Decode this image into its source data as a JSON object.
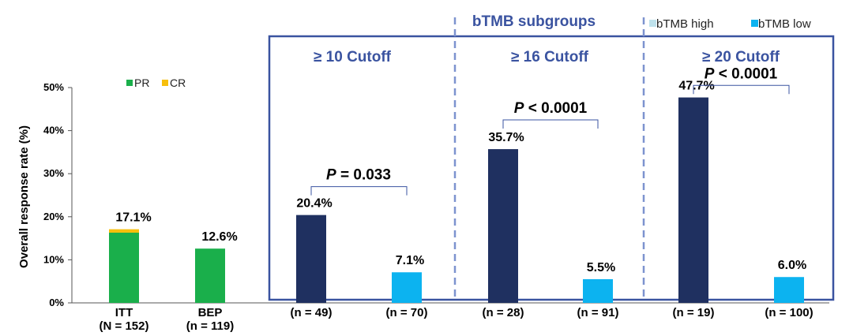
{
  "chart_data": {
    "type": "bar",
    "title": "",
    "ylabel": "Overall response rate (%)",
    "ylim": [
      0,
      50
    ],
    "yticks": [
      "0%",
      "10%",
      "20%",
      "30%",
      "40%",
      "50%"
    ],
    "stack_legend": [
      {
        "name": "PR",
        "color": "#1aaf4b"
      },
      {
        "name": "CR",
        "color": "#f7bf0d"
      }
    ],
    "group_legend": [
      {
        "name": "bTMB high",
        "color": "#bfe2ec"
      },
      {
        "name": "bTMB low",
        "color": "#0cb3f0"
      }
    ],
    "subgroups_title": "bTMB subgroups",
    "colors": {
      "high": "#1f3060",
      "low": "#0cb3f0",
      "pr": "#1aaf4b",
      "cr": "#f7bf0d",
      "accent": "#3a53a0"
    },
    "bars": [
      {
        "key": "itt",
        "cat1": "ITT",
        "cat2": "(N = 152)",
        "kind": "stack",
        "pr": 16.3,
        "cr": 0.8,
        "label": "17.1%"
      },
      {
        "key": "bep",
        "cat1": "BEP",
        "cat2": "(n = 119)",
        "kind": "stack",
        "pr": 12.6,
        "cr": 0,
        "label": "12.6%"
      },
      {
        "key": "c10-high",
        "cat2": "(n = 49)",
        "kind": "high",
        "value": 20.4,
        "label": "20.4%"
      },
      {
        "key": "c10-low",
        "cat2": "(n = 70)",
        "kind": "low",
        "value": 7.1,
        "label": "7.1%"
      },
      {
        "key": "c16-high",
        "cat2": "(n = 28)",
        "kind": "high",
        "value": 35.7,
        "label": "35.7%"
      },
      {
        "key": "c16-low",
        "cat2": "(n = 91)",
        "kind": "low",
        "value": 5.5,
        "label": "5.5%"
      },
      {
        "key": "c20-high",
        "cat2": "(n = 19)",
        "kind": "high",
        "value": 47.7,
        "label": "47.7%"
      },
      {
        "key": "c20-low",
        "cat2": "(n = 100)",
        "kind": "low",
        "value": 6.0,
        "label": "6.0%"
      }
    ],
    "cutoffs": [
      {
        "label": "≥ 10 Cutoff",
        "p_prefix": "P",
        "p_rest": " = 0.033",
        "bracket_at": 27
      },
      {
        "label": "≥ 16 Cutoff",
        "p_prefix": "P",
        "p_rest": " < 0.0001",
        "bracket_at": 42.5
      },
      {
        "label": "≥ 20 Cutoff",
        "p_prefix": "P",
        "p_rest": " < 0.0001",
        "bracket_at": 50.5
      }
    ]
  }
}
